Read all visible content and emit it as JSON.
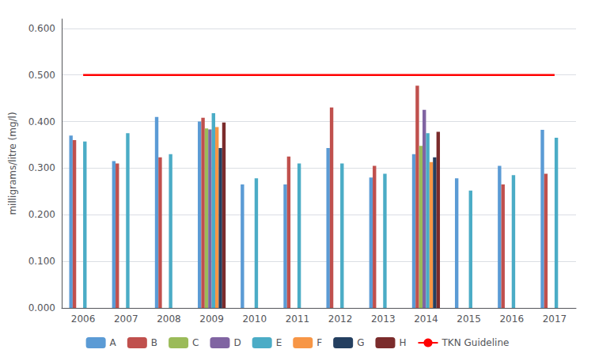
{
  "chart_data": {
    "type": "bar",
    "y_label": "milligrams/litre (mg/l)",
    "categories": [
      "2006",
      "2007",
      "2008",
      "2009",
      "2010",
      "2011",
      "2012",
      "2013",
      "2014",
      "2015",
      "2016",
      "2017"
    ],
    "series": [
      {
        "name": "A",
        "color": "#5B9BD5",
        "values": [
          0.37,
          0.315,
          0.41,
          0.4,
          0.265,
          0.265,
          0.343,
          0.28,
          0.33,
          0.278,
          0.305,
          0.382
        ]
      },
      {
        "name": "B",
        "color": "#C0504D",
        "values": [
          0.36,
          0.31,
          0.323,
          0.408,
          null,
          0.325,
          0.43,
          0.305,
          0.477,
          null,
          0.265,
          0.288
        ]
      },
      {
        "name": "C",
        "color": "#9BBB59",
        "values": [
          null,
          null,
          null,
          0.385,
          null,
          null,
          null,
          null,
          0.348,
          null,
          null,
          null
        ]
      },
      {
        "name": "D",
        "color": "#8064A2",
        "values": [
          null,
          null,
          null,
          0.383,
          null,
          null,
          null,
          null,
          0.425,
          null,
          null,
          null
        ]
      },
      {
        "name": "E",
        "color": "#4BACC6",
        "values": [
          0.357,
          0.375,
          0.33,
          0.418,
          0.278,
          0.31,
          0.31,
          0.288,
          0.375,
          0.252,
          0.285,
          0.365
        ]
      },
      {
        "name": "F",
        "color": "#F79646",
        "values": [
          null,
          null,
          null,
          0.388,
          null,
          null,
          null,
          null,
          0.313,
          null,
          null,
          null
        ]
      },
      {
        "name": "G",
        "color": "#243F60",
        "values": [
          null,
          null,
          null,
          0.343,
          null,
          null,
          null,
          null,
          0.323,
          null,
          null,
          null
        ]
      },
      {
        "name": "H",
        "color": "#7B2C2C",
        "values": [
          null,
          null,
          null,
          0.398,
          null,
          null,
          null,
          null,
          0.378,
          null,
          null,
          null
        ]
      },
      {
        "name": "TKN Guideline",
        "type": "line",
        "color": "#FF0000",
        "values": [
          0.5,
          0.5,
          0.5,
          0.5,
          0.5,
          0.5,
          0.5,
          0.5,
          0.5,
          0.5,
          0.5,
          0.5
        ]
      }
    ],
    "ylim": [
      0.0,
      0.62
    ],
    "yticks": [
      {
        "value": 0.0,
        "label": "0.000"
      },
      {
        "value": 0.1,
        "label": "0.100"
      },
      {
        "value": 0.2,
        "label": "0.200"
      },
      {
        "value": 0.3,
        "label": "0.300"
      },
      {
        "value": 0.4,
        "label": "0.400"
      },
      {
        "value": 0.5,
        "label": "0.500"
      },
      {
        "value": 0.6,
        "label": "0.600"
      }
    ],
    "grid": true,
    "legend": "bottom"
  }
}
